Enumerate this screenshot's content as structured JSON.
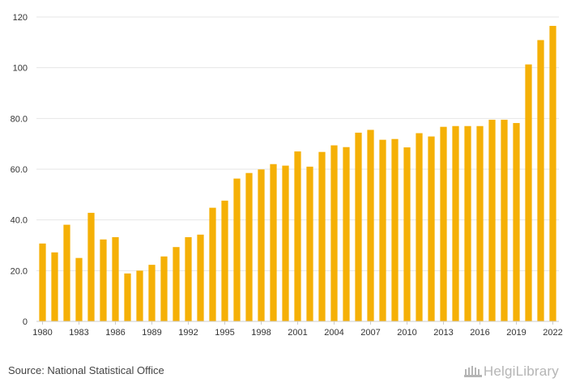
{
  "chart_data": {
    "type": "bar",
    "categories": [
      "1980",
      "1981",
      "1982",
      "1983",
      "1984",
      "1985",
      "1986",
      "1987",
      "1988",
      "1989",
      "1990",
      "1991",
      "1992",
      "1993",
      "1994",
      "1995",
      "1996",
      "1997",
      "1998",
      "1999",
      "2000",
      "2001",
      "2002",
      "2003",
      "2004",
      "2005",
      "2006",
      "2007",
      "2008",
      "2009",
      "2010",
      "2011",
      "2012",
      "2013",
      "2014",
      "2015",
      "2016",
      "2017",
      "2018",
      "2019",
      "2020",
      "2021",
      "2022"
    ],
    "values": [
      30.7,
      27.2,
      38.1,
      25.0,
      42.8,
      32.3,
      33.2,
      18.9,
      20.0,
      22.3,
      25.6,
      29.3,
      33.2,
      34.2,
      44.8,
      47.6,
      56.3,
      58.5,
      59.9,
      62.0,
      61.4,
      67.0,
      61.0,
      66.8,
      69.4,
      68.7,
      74.4,
      75.5,
      71.6,
      71.9,
      68.6,
      74.2,
      72.9,
      76.7,
      77.0,
      77.0,
      77.0,
      79.5,
      79.5,
      78.2,
      101.3,
      110.9,
      116.5
    ],
    "x_tick_labels": [
      "1980",
      "1983",
      "1986",
      "1989",
      "1992",
      "1995",
      "1998",
      "2001",
      "2004",
      "2007",
      "2010",
      "2013",
      "2016",
      "2019",
      "2022"
    ],
    "y_tick_labels": [
      "0",
      "20.0",
      "40.0",
      "60.0",
      "80.0",
      "100",
      "120"
    ],
    "y_ticks": [
      0,
      20,
      40,
      60,
      80,
      100,
      120
    ],
    "ylim": [
      0,
      120
    ],
    "grid": true,
    "bar_color": "#F5B006",
    "title": "",
    "xlabel": "",
    "ylabel": ""
  },
  "footer": {
    "source_text": "Source: National Statistical Office",
    "logo_text": "HelgiLibrary"
  }
}
